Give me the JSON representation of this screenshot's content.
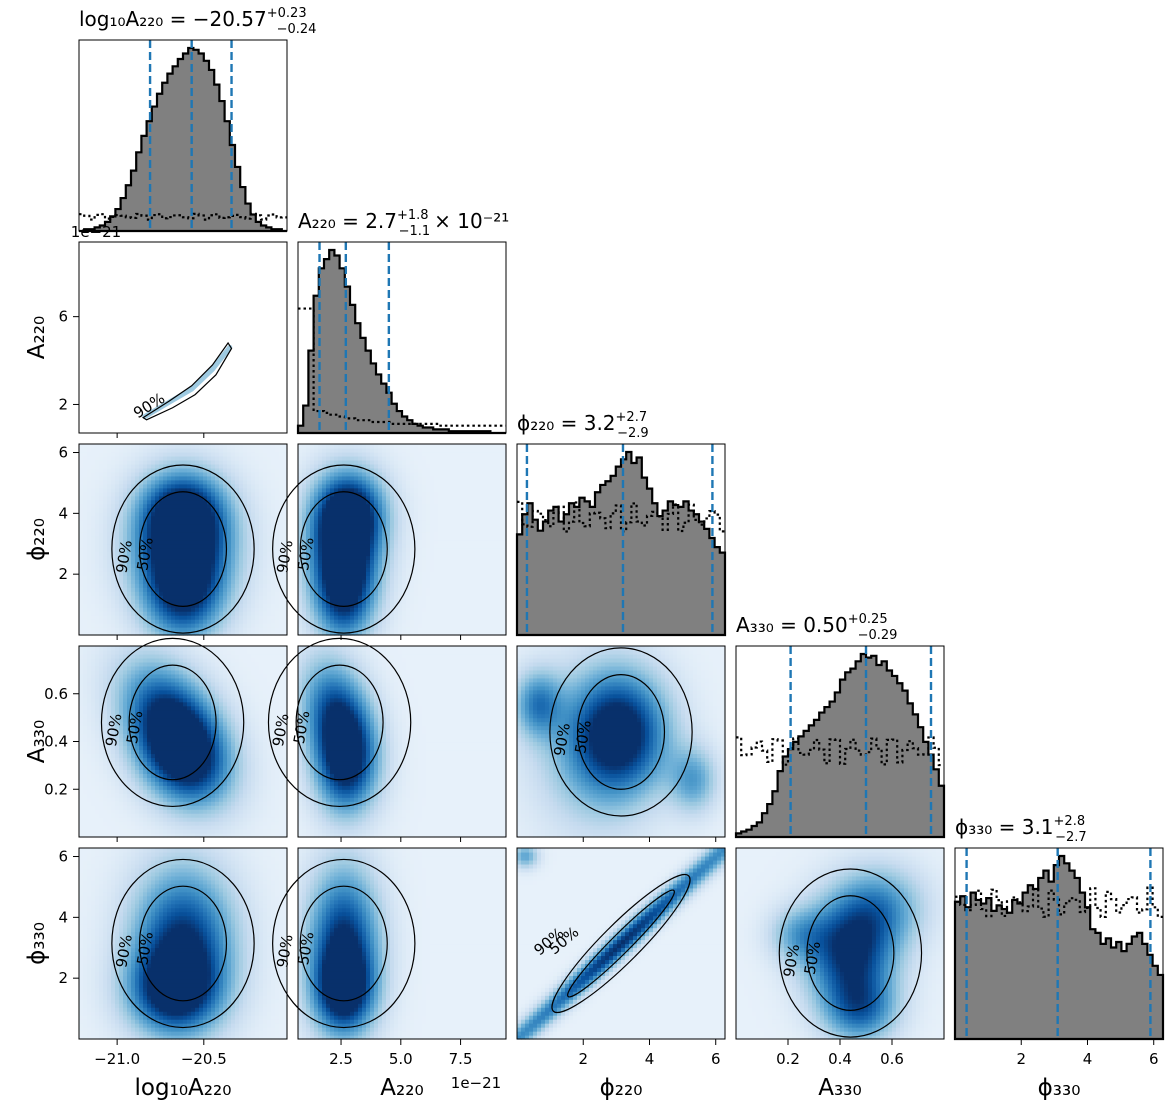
{
  "chart_data": {
    "type": "corner",
    "parameters": [
      {
        "key": "logA220",
        "label": "log₁₀A₂₂₀",
        "range": [
          -21.22,
          -20.02
        ],
        "ticks": [
          -21.0,
          -20.5
        ],
        "tick_labels": [
          "−21.0",
          "−20.5"
        ]
      },
      {
        "key": "A220",
        "label": "A₂₂₀",
        "range": [
          0.7,
          9.4
        ],
        "ticks": [
          2.5,
          5.0,
          7.5
        ],
        "tick_labels": [
          "2.5",
          "5.0",
          "7.5"
        ],
        "ticks_left": [
          2,
          6
        ],
        "tick_labels_left": [
          "2",
          "6"
        ],
        "offset": "1e−21"
      },
      {
        "key": "phi220",
        "label": "ϕ₂₂₀",
        "range": [
          0.0,
          6.28
        ],
        "ticks": [
          2,
          4,
          6
        ],
        "tick_labels": [
          "2",
          "4",
          "6"
        ]
      },
      {
        "key": "A330",
        "label": "A₃₃₀",
        "range": [
          0.0,
          0.8
        ],
        "ticks": [
          0.2,
          0.4,
          0.6
        ],
        "tick_labels": [
          "0.2",
          "0.4",
          "0.6"
        ]
      },
      {
        "key": "phi330",
        "label": "ϕ₃₃₀",
        "range": [
          0.0,
          6.28
        ],
        "ticks": [
          2,
          4,
          6
        ],
        "tick_labels": [
          "2",
          "4",
          "6"
        ]
      }
    ],
    "diagonal_titles": [
      {
        "param": "logA220",
        "prefix": "log₁₀A₂₂₀ = −20.57",
        "sup": "+0.23",
        "sub": "−0.24",
        "suffix": ""
      },
      {
        "param": "A220",
        "prefix": "A₂₂₀ = 2.7",
        "sup": "+1.8",
        "sub": "−1.1",
        "suffix": "× 10⁻²¹"
      },
      {
        "param": "phi220",
        "prefix": "ϕ₂₂₀ = 3.2",
        "sup": "+2.7",
        "sub": "−2.9",
        "suffix": ""
      },
      {
        "param": "A330",
        "prefix": "A₃₃₀ = 0.50",
        "sup": "+0.25",
        "sub": "−0.29",
        "suffix": ""
      },
      {
        "param": "phi330",
        "prefix": "ϕ₃₃₀ = 3.1",
        "sup": "+2.8",
        "sub": "−2.7",
        "suffix": ""
      }
    ],
    "quantiles": [
      [
        -20.81,
        -20.57,
        -20.34
      ],
      [
        1.6,
        2.7,
        4.5
      ],
      [
        0.3,
        3.2,
        5.9
      ],
      [
        0.21,
        0.5,
        0.75
      ],
      [
        0.35,
        3.1,
        5.9
      ]
    ],
    "histograms": [
      {
        "heights": [
          0.0,
          0.01,
          0.01,
          0.02,
          0.03,
          0.05,
          0.08,
          0.12,
          0.18,
          0.25,
          0.33,
          0.43,
          0.52,
          0.6,
          0.68,
          0.75,
          0.81,
          0.86,
          0.9,
          0.94,
          0.97,
          1.0,
          0.99,
          0.97,
          0.93,
          0.88,
          0.8,
          0.71,
          0.6,
          0.47,
          0.35,
          0.24,
          0.15,
          0.09,
          0.05,
          0.03,
          0.02,
          0.01,
          0.01,
          0.0
        ],
        "prior": 0.08
      },
      {
        "heights": [
          0.04,
          0.15,
          0.45,
          0.75,
          0.9,
          0.95,
          1.0,
          0.97,
          0.9,
          0.8,
          0.7,
          0.6,
          0.52,
          0.45,
          0.38,
          0.32,
          0.27,
          0.22,
          0.16,
          0.12,
          0.09,
          0.07,
          0.05,
          0.04,
          0.03,
          0.03,
          0.02,
          0.02,
          0.02,
          0.01,
          0.01,
          0.01,
          0.01,
          0.01,
          0.01,
          0.01,
          0.01,
          0.0,
          0.0,
          0.0
        ],
        "prior_line": [
          0.68,
          0.68,
          0.68,
          0.12,
          0.12,
          0.11,
          0.1,
          0.1,
          0.09,
          0.08,
          0.08,
          0.07,
          0.07,
          0.07,
          0.06,
          0.06,
          0.06,
          0.06,
          0.05,
          0.05,
          0.05,
          0.05,
          0.05,
          0.05,
          0.05,
          0.05,
          0.05,
          0.04,
          0.04,
          0.04,
          0.04,
          0.04,
          0.04,
          0.04,
          0.04,
          0.04,
          0.04,
          0.04,
          0.04,
          0.04
        ]
      },
      {
        "heights": [
          0.55,
          0.66,
          0.72,
          0.63,
          0.57,
          0.62,
          0.68,
          0.7,
          0.62,
          0.66,
          0.72,
          0.7,
          0.75,
          0.73,
          0.7,
          0.78,
          0.82,
          0.84,
          0.87,
          0.92,
          0.96,
          1.0,
          0.94,
          0.97,
          0.86,
          0.8,
          0.72,
          0.65,
          0.68,
          0.73,
          0.71,
          0.7,
          0.73,
          0.68,
          0.66,
          0.62,
          0.58,
          0.53,
          0.48,
          0.45
        ],
        "prior": 0.64
      },
      {
        "heights": [
          0.02,
          0.03,
          0.04,
          0.06,
          0.08,
          0.13,
          0.18,
          0.25,
          0.36,
          0.44,
          0.48,
          0.52,
          0.55,
          0.58,
          0.61,
          0.64,
          0.68,
          0.71,
          0.74,
          0.79,
          0.86,
          0.9,
          0.92,
          0.96,
          1.0,
          0.98,
          0.99,
          0.94,
          0.96,
          0.91,
          0.88,
          0.84,
          0.8,
          0.73,
          0.67,
          0.6,
          0.52,
          0.45,
          0.37,
          0.28
        ],
        "prior": 0.48
      },
      {
        "heights": [
          0.75,
          0.78,
          0.72,
          0.8,
          0.76,
          0.74,
          0.77,
          0.7,
          0.73,
          0.71,
          0.69,
          0.76,
          0.74,
          0.8,
          0.84,
          0.82,
          0.88,
          0.92,
          0.86,
          0.95,
          1.0,
          0.96,
          0.92,
          0.88,
          0.8,
          0.72,
          0.6,
          0.58,
          0.52,
          0.55,
          0.5,
          0.53,
          0.48,
          0.52,
          0.56,
          0.58,
          0.52,
          0.46,
          0.4,
          0.35
        ],
        "prior": 0.74
      }
    ],
    "contour_labels": [
      "50%",
      "90%"
    ],
    "colormap": "Blues",
    "hist_fill": "#808080",
    "quantile_color": "#1f77b4"
  }
}
